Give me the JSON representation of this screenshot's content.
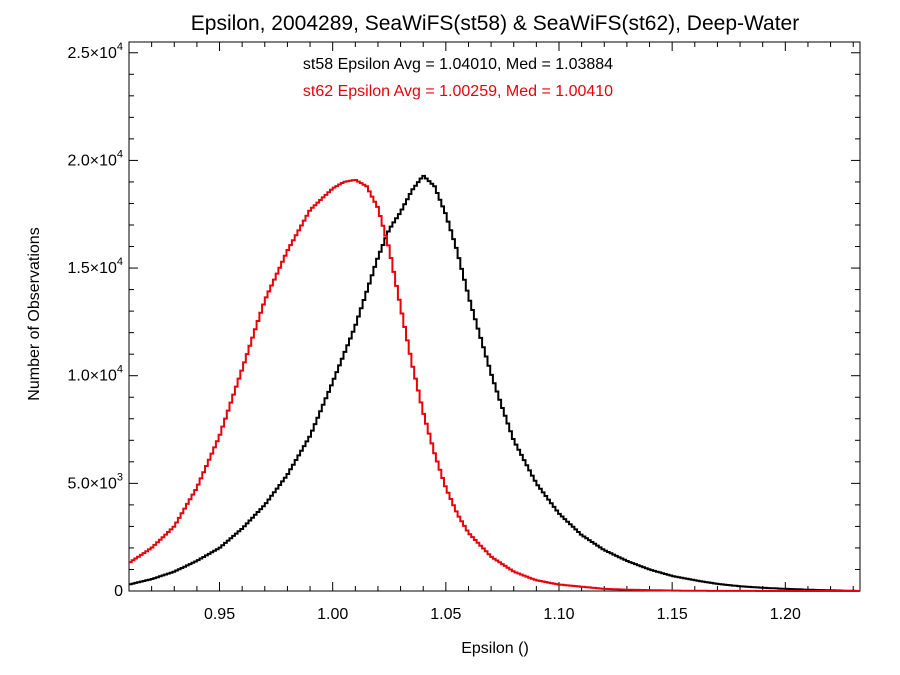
{
  "chart_data": {
    "type": "line",
    "title": "Epsilon, 2004289, SeaWiFS(st58) & SeaWiFS(st62), Deep-Water",
    "xlabel": "Epsilon ()",
    "ylabel": "Number of Observations",
    "xlim": [
      0.91,
      1.233
    ],
    "ylim": [
      0,
      25500
    ],
    "x_ticks": [
      {
        "value": 0.95,
        "label": "0.95"
      },
      {
        "value": 1.0,
        "label": "1.00"
      },
      {
        "value": 1.05,
        "label": "1.05"
      },
      {
        "value": 1.1,
        "label": "1.10"
      },
      {
        "value": 1.15,
        "label": "1.15"
      },
      {
        "value": 1.2,
        "label": "1.20"
      }
    ],
    "y_ticks": [
      {
        "value": 0,
        "mantissa": "0",
        "exp": ""
      },
      {
        "value": 5000,
        "mantissa": "5.0×10",
        "exp": "3"
      },
      {
        "value": 10000,
        "mantissa": "1.0×10",
        "exp": "4"
      },
      {
        "value": 15000,
        "mantissa": "1.5×10",
        "exp": "4"
      },
      {
        "value": 20000,
        "mantissa": "2.0×10",
        "exp": "4"
      },
      {
        "value": 25000,
        "mantissa": "2.5×10",
        "exp": "4"
      }
    ],
    "annotations": [
      {
        "text": "st58 Epsilon Avg = 1.04010, Med = 1.03884",
        "color": "#000000"
      },
      {
        "text": "st62 Epsilon Avg = 1.00259, Med = 1.00410",
        "color": "#e8000b"
      }
    ],
    "series": [
      {
        "color": "#000000",
        "x": [
          0.91,
          0.92,
          0.93,
          0.94,
          0.95,
          0.96,
          0.97,
          0.98,
          0.99,
          1.0,
          1.01,
          1.015,
          1.02,
          1.025,
          1.03,
          1.035,
          1.04,
          1.045,
          1.05,
          1.055,
          1.06,
          1.065,
          1.07,
          1.075,
          1.08,
          1.09,
          1.1,
          1.11,
          1.12,
          1.13,
          1.14,
          1.15,
          1.16,
          1.17,
          1.18,
          1.19,
          1.2,
          1.21,
          1.22,
          1.233
        ],
        "y": [
          300,
          550,
          900,
          1400,
          2000,
          2900,
          4000,
          5400,
          7200,
          9700,
          12300,
          13900,
          15500,
          16800,
          17600,
          18600,
          19300,
          18800,
          17500,
          15800,
          13700,
          11900,
          10100,
          8500,
          7000,
          5000,
          3600,
          2600,
          1900,
          1400,
          1000,
          700,
          500,
          330,
          220,
          150,
          100,
          60,
          30,
          0
        ]
      },
      {
        "color": "#e8000b",
        "x": [
          0.91,
          0.92,
          0.93,
          0.94,
          0.95,
          0.96,
          0.97,
          0.98,
          0.99,
          1.0,
          1.005,
          1.01,
          1.015,
          1.02,
          1.025,
          1.03,
          1.035,
          1.04,
          1.045,
          1.05,
          1.055,
          1.06,
          1.07,
          1.08,
          1.09,
          1.1,
          1.11,
          1.12,
          1.13,
          1.14,
          1.15,
          1.16,
          1.17,
          1.18,
          1.19,
          1.2,
          1.21,
          1.22,
          1.233
        ],
        "y": [
          1300,
          2000,
          3000,
          4800,
          7200,
          10300,
          13500,
          15800,
          17700,
          18700,
          19000,
          19100,
          18800,
          17800,
          15900,
          13200,
          10600,
          8300,
          6400,
          4800,
          3600,
          2700,
          1600,
          900,
          500,
          300,
          200,
          100,
          60,
          40,
          20,
          10,
          5,
          3,
          2,
          1,
          0,
          0,
          0
        ]
      }
    ]
  }
}
